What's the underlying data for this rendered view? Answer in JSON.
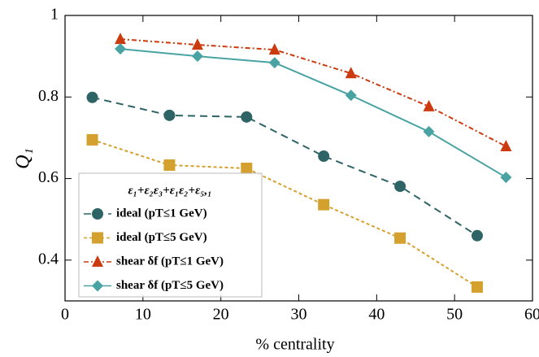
{
  "chart_data": {
    "type": "line",
    "xlabel": "% centrality",
    "ylabel": "Q₁",
    "xlim": [
      0,
      60
    ],
    "xticks": [
      0,
      10,
      20,
      30,
      40,
      50,
      60
    ],
    "ylim": [
      0.3,
      1
    ],
    "yticks": [
      0.4,
      0.6,
      0.8,
      1
    ],
    "legend": "lower left",
    "legend_title": "ε₁+ε₂ε₃+ε₁ε₂+ε₅,₁",
    "series": [
      {
        "name": "ideal (pT≤1 GeV)",
        "color": "#2e6466",
        "marker": "circle",
        "dash": "9,6",
        "x": [
          3.5,
          13.4,
          23.3,
          33.2,
          43.0,
          52.9
        ],
        "values": [
          0.799,
          0.755,
          0.751,
          0.655,
          0.581,
          0.46
        ]
      },
      {
        "name": "ideal (pT≤5 GeV)",
        "color": "#d4a12e",
        "marker": "square",
        "dash": "4,3",
        "x": [
          3.5,
          13.4,
          23.3,
          33.2,
          43.0,
          52.9
        ],
        "values": [
          0.695,
          0.633,
          0.625,
          0.536,
          0.454,
          0.334
        ]
      },
      {
        "name": "shear δf (pT≤1 GeV)",
        "color": "#cc3a10",
        "marker": "triangle",
        "dash": "6,3,2,3",
        "x": [
          7.1,
          17.0,
          26.9,
          36.7,
          46.7,
          56.6
        ],
        "values": [
          0.942,
          0.928,
          0.916,
          0.858,
          0.777,
          0.679
        ]
      },
      {
        "name": "shear δf (pT≤5 GeV)",
        "color": "#4aa3a3",
        "marker": "diamond",
        "dash": "none",
        "x": [
          7.1,
          17.0,
          26.9,
          36.7,
          46.7,
          56.6
        ],
        "values": [
          0.918,
          0.9,
          0.884,
          0.804,
          0.715,
          0.603
        ]
      }
    ]
  }
}
